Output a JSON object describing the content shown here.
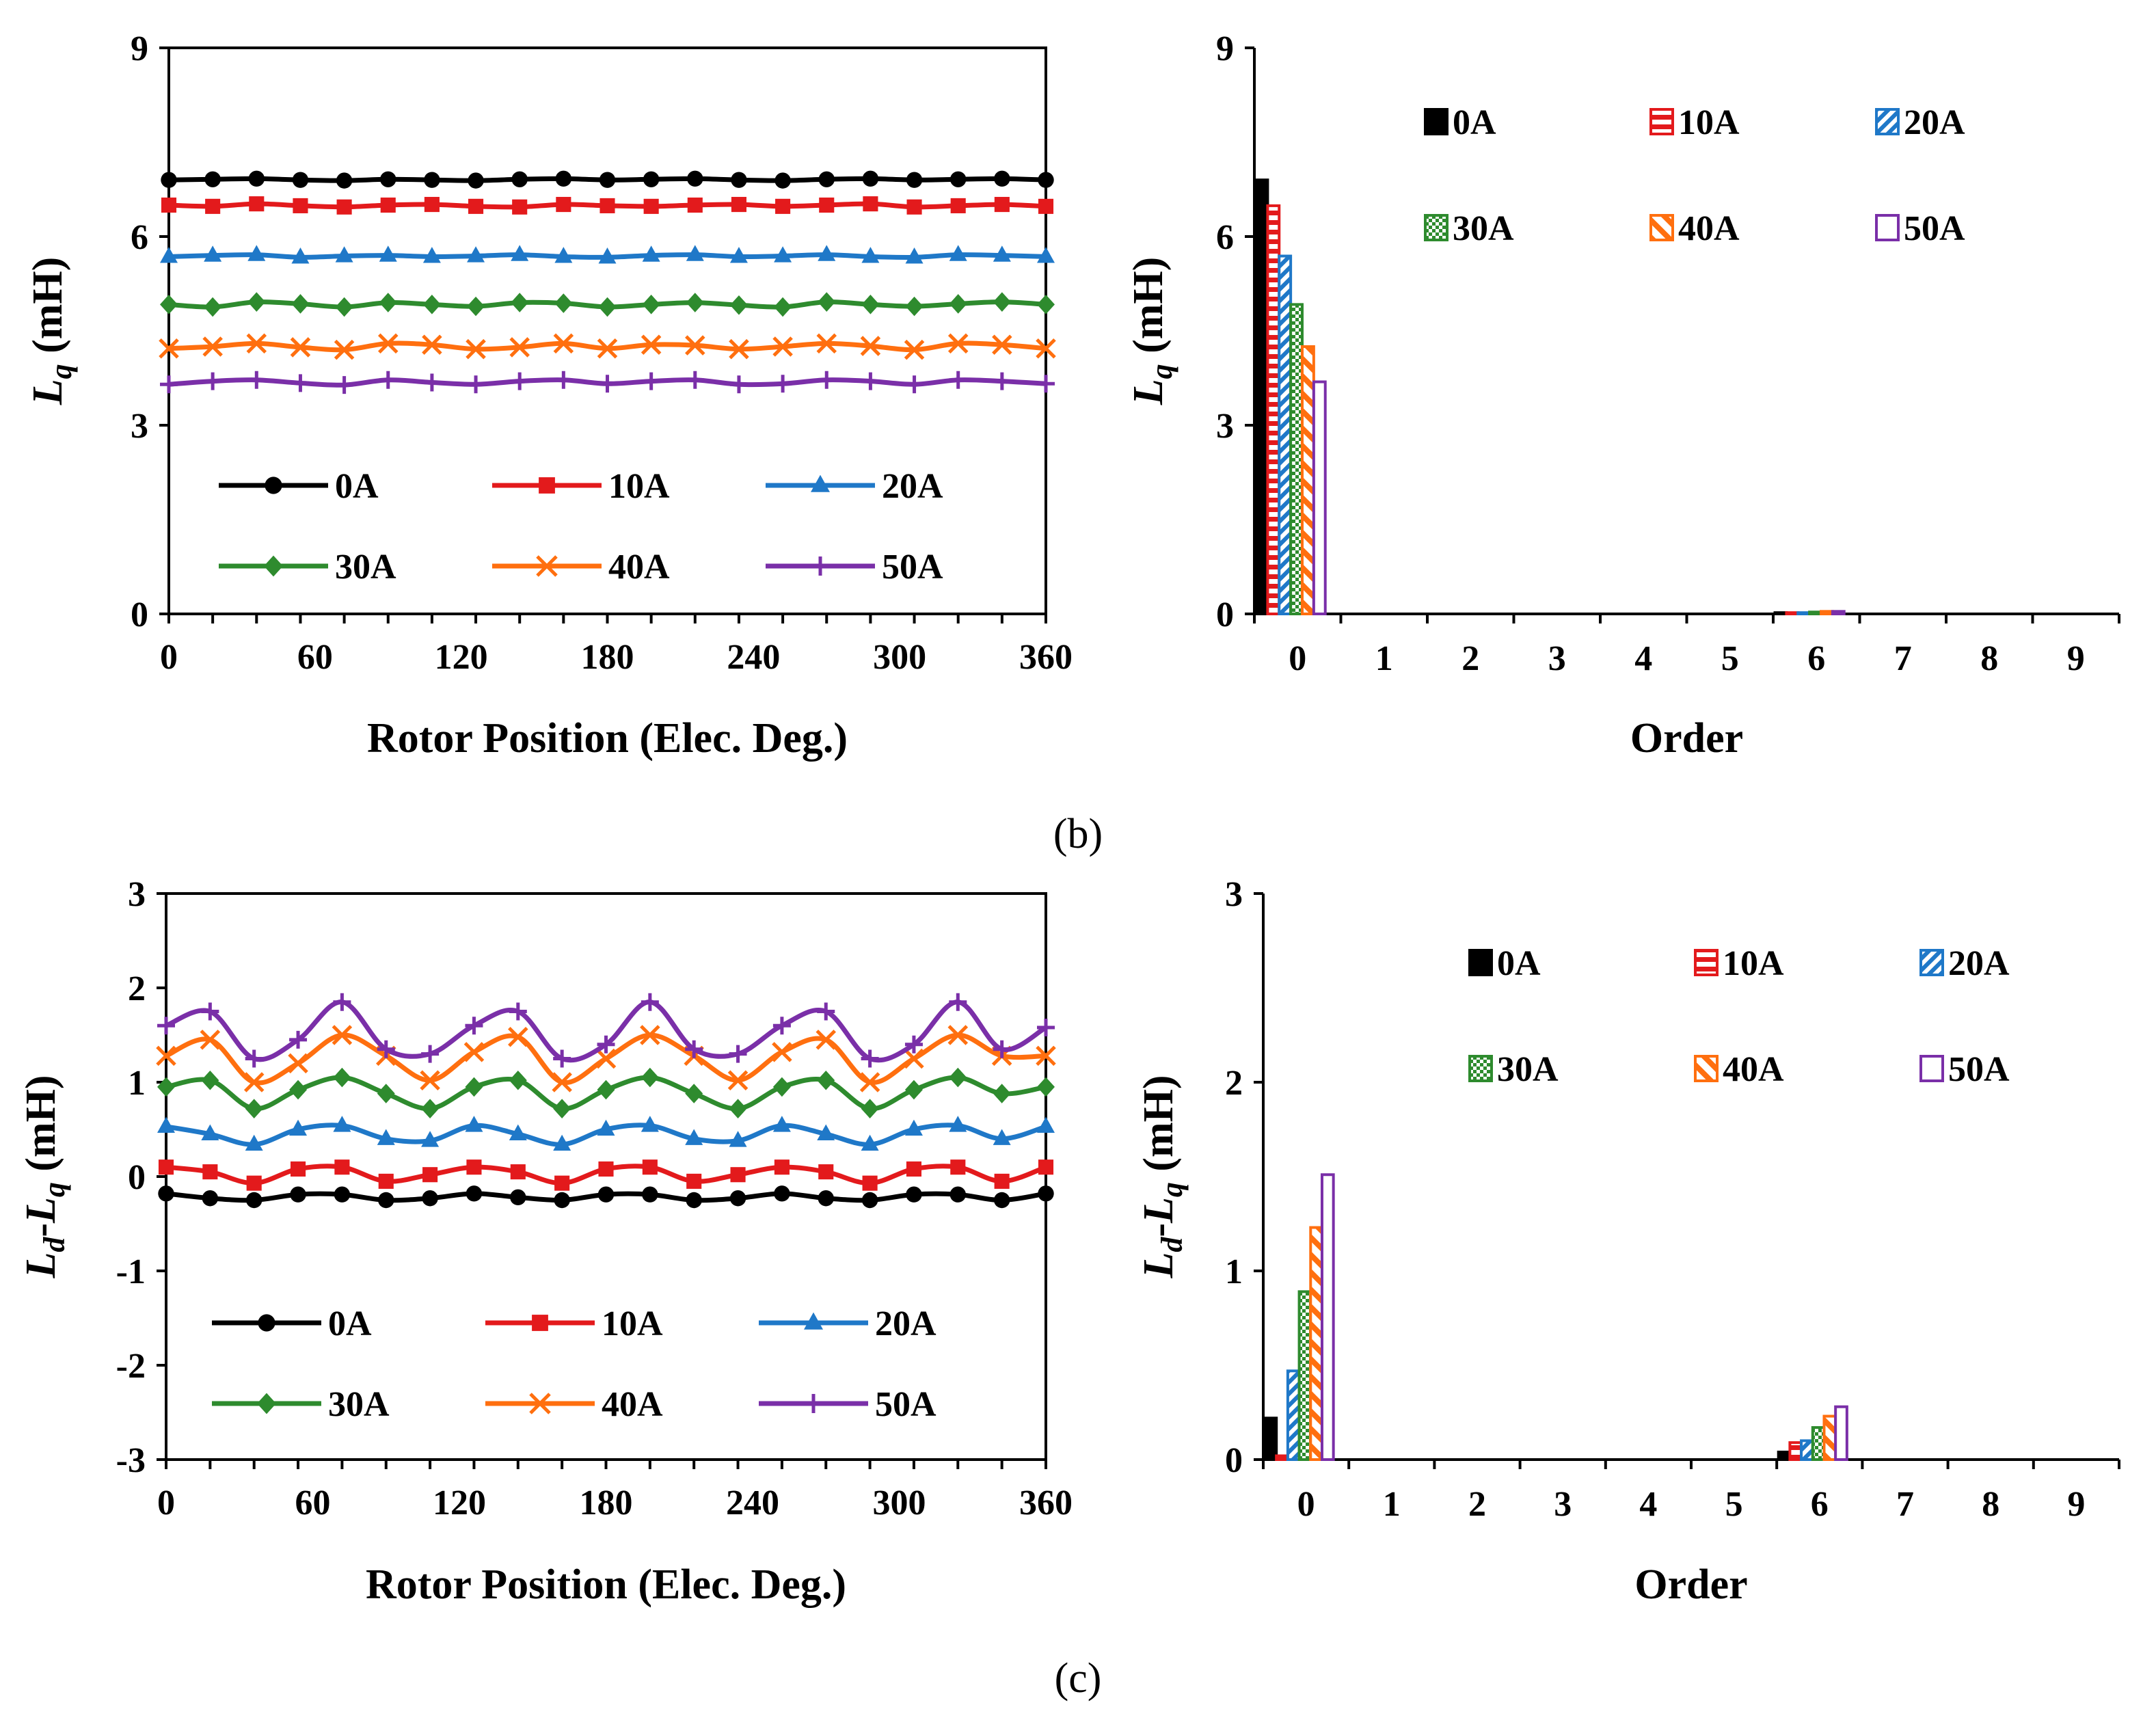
{
  "captions": {
    "b": "(b)",
    "c": "(c)"
  },
  "chart_data": [
    {
      "id": "b-left",
      "type": "line",
      "ylabel": {
        "main": "L",
        "sub": "q",
        "unit": " (mH)"
      },
      "xlabel": "Rotor Position (Elec. Deg.)",
      "xlim": [
        0,
        360
      ],
      "ylim": [
        0,
        9
      ],
      "xticks": [
        "0",
        "60",
        "120",
        "180",
        "240",
        "300",
        "360"
      ],
      "yticks": [
        "0",
        "3",
        "6",
        "9"
      ],
      "legend_cols": 3,
      "x": [
        0,
        18,
        36,
        54,
        72,
        90,
        108,
        126,
        144,
        162,
        180,
        198,
        216,
        234,
        252,
        270,
        288,
        306,
        324,
        342,
        360
      ],
      "series": [
        {
          "name": "0A",
          "color": "#000000",
          "marker": "circle",
          "values": [
            6.9,
            6.91,
            6.92,
            6.9,
            6.89,
            6.91,
            6.9,
            6.89,
            6.91,
            6.92,
            6.9,
            6.91,
            6.92,
            6.9,
            6.89,
            6.91,
            6.92,
            6.9,
            6.91,
            6.92,
            6.9
          ]
        },
        {
          "name": "10A",
          "color": "#e31a1c",
          "marker": "square",
          "values": [
            6.5,
            6.48,
            6.52,
            6.49,
            6.47,
            6.5,
            6.51,
            6.48,
            6.47,
            6.51,
            6.49,
            6.48,
            6.5,
            6.51,
            6.48,
            6.5,
            6.52,
            6.47,
            6.49,
            6.51,
            6.48
          ]
        },
        {
          "name": "20A",
          "color": "#1f78c8",
          "marker": "triangle",
          "values": [
            5.68,
            5.7,
            5.71,
            5.67,
            5.69,
            5.7,
            5.68,
            5.69,
            5.71,
            5.68,
            5.67,
            5.7,
            5.71,
            5.68,
            5.69,
            5.71,
            5.68,
            5.67,
            5.71,
            5.7,
            5.68
          ]
        },
        {
          "name": "30A",
          "color": "#2e8b2e",
          "marker": "diamond",
          "values": [
            4.92,
            4.88,
            4.96,
            4.93,
            4.88,
            4.95,
            4.92,
            4.89,
            4.95,
            4.94,
            4.88,
            4.92,
            4.95,
            4.91,
            4.88,
            4.96,
            4.92,
            4.89,
            4.93,
            4.96,
            4.92
          ]
        },
        {
          "name": "40A",
          "color": "#ff6f0f",
          "marker": "x",
          "values": [
            4.22,
            4.25,
            4.3,
            4.24,
            4.2,
            4.3,
            4.28,
            4.21,
            4.24,
            4.3,
            4.22,
            4.28,
            4.27,
            4.21,
            4.25,
            4.3,
            4.26,
            4.2,
            4.3,
            4.28,
            4.22
          ]
        },
        {
          "name": "50A",
          "color": "#7a2fa8",
          "marker": "plus",
          "values": [
            3.65,
            3.7,
            3.72,
            3.67,
            3.64,
            3.72,
            3.68,
            3.65,
            3.7,
            3.72,
            3.66,
            3.7,
            3.72,
            3.65,
            3.66,
            3.72,
            3.7,
            3.65,
            3.72,
            3.7,
            3.66
          ]
        }
      ]
    },
    {
      "id": "b-right",
      "type": "bar",
      "ylabel": {
        "main": "L",
        "sub": "q",
        "unit": " (mH)"
      },
      "xlabel": "Order",
      "ylim": [
        0,
        9
      ],
      "categories": [
        "0",
        "1",
        "2",
        "3",
        "4",
        "5",
        "6",
        "7",
        "8",
        "9"
      ],
      "yticks": [
        "0",
        "3",
        "6",
        "9"
      ],
      "legend_cols": 3,
      "series": [
        {
          "name": "0A",
          "color": "#000000",
          "pattern": "solid",
          "values": [
            6.9,
            0,
            0,
            0,
            0,
            0,
            0.02,
            0,
            0,
            0
          ]
        },
        {
          "name": "10A",
          "color": "#e31a1c",
          "pattern": "hlines",
          "values": [
            6.49,
            0,
            0,
            0,
            0,
            0,
            0.02,
            0,
            0,
            0
          ]
        },
        {
          "name": "20A",
          "color": "#1f78c8",
          "pattern": "diag",
          "values": [
            5.69,
            0,
            0,
            0,
            0,
            0,
            0.02,
            0,
            0,
            0
          ]
        },
        {
          "name": "30A",
          "color": "#2e8b2e",
          "pattern": "checker",
          "values": [
            4.92,
            0,
            0,
            0,
            0,
            0,
            0.03,
            0,
            0,
            0
          ]
        },
        {
          "name": "40A",
          "color": "#ff6f0f",
          "pattern": "wdiag",
          "values": [
            4.25,
            0,
            0,
            0,
            0,
            0,
            0.04,
            0,
            0,
            0
          ]
        },
        {
          "name": "50A",
          "color": "#7a2fa8",
          "pattern": "hollow",
          "values": [
            3.69,
            0,
            0,
            0,
            0,
            0,
            0.04,
            0,
            0,
            0
          ]
        }
      ]
    },
    {
      "id": "c-left",
      "type": "line",
      "ylabel": {
        "main": "L",
        "sub": "d",
        "mid": "-L",
        "sub2": "q",
        "unit": " (mH)"
      },
      "xlabel": "Rotor Position (Elec. Deg.)",
      "xlim": [
        0,
        360
      ],
      "ylim": [
        -3,
        3
      ],
      "xticks": [
        "0",
        "60",
        "120",
        "180",
        "240",
        "300",
        "360"
      ],
      "yticks": [
        "-3",
        "-2",
        "-1",
        "0",
        "1",
        "2",
        "3"
      ],
      "legend_cols": 3,
      "x": [
        0,
        18,
        36,
        54,
        72,
        90,
        108,
        126,
        144,
        162,
        180,
        198,
        216,
        234,
        252,
        270,
        288,
        306,
        324,
        342,
        360
      ],
      "series": [
        {
          "name": "0A",
          "color": "#000000",
          "marker": "circle",
          "values": [
            -0.18,
            -0.23,
            -0.25,
            -0.19,
            -0.19,
            -0.25,
            -0.23,
            -0.18,
            -0.22,
            -0.25,
            -0.19,
            -0.19,
            -0.25,
            -0.23,
            -0.18,
            -0.23,
            -0.25,
            -0.19,
            -0.19,
            -0.25,
            -0.18
          ]
        },
        {
          "name": "10A",
          "color": "#e31a1c",
          "marker": "square",
          "values": [
            0.1,
            0.05,
            -0.07,
            0.08,
            0.1,
            -0.05,
            0.02,
            0.1,
            0.05,
            -0.07,
            0.08,
            0.1,
            -0.05,
            0.02,
            0.1,
            0.05,
            -0.07,
            0.08,
            0.1,
            -0.05,
            0.1
          ]
        },
        {
          "name": "20A",
          "color": "#1f78c8",
          "marker": "triangle",
          "values": [
            0.53,
            0.45,
            0.34,
            0.5,
            0.54,
            0.4,
            0.38,
            0.54,
            0.45,
            0.34,
            0.5,
            0.54,
            0.4,
            0.38,
            0.54,
            0.45,
            0.34,
            0.5,
            0.54,
            0.4,
            0.53
          ]
        },
        {
          "name": "30A",
          "color": "#2e8b2e",
          "marker": "diamond",
          "values": [
            0.95,
            1.02,
            0.72,
            0.92,
            1.05,
            0.88,
            0.72,
            0.95,
            1.02,
            0.72,
            0.92,
            1.05,
            0.88,
            0.72,
            0.95,
            1.02,
            0.72,
            0.92,
            1.05,
            0.88,
            0.95
          ]
        },
        {
          "name": "40A",
          "color": "#ff6f0f",
          "marker": "x",
          "values": [
            1.28,
            1.45,
            1.0,
            1.2,
            1.5,
            1.28,
            1.02,
            1.32,
            1.48,
            1.0,
            1.25,
            1.5,
            1.28,
            1.02,
            1.32,
            1.45,
            1.0,
            1.25,
            1.5,
            1.28,
            1.28
          ]
        },
        {
          "name": "50A",
          "color": "#7a2fa8",
          "marker": "plus",
          "values": [
            1.6,
            1.75,
            1.25,
            1.45,
            1.85,
            1.35,
            1.3,
            1.6,
            1.75,
            1.25,
            1.4,
            1.85,
            1.35,
            1.3,
            1.6,
            1.75,
            1.25,
            1.4,
            1.85,
            1.35,
            1.58
          ]
        }
      ]
    },
    {
      "id": "c-right",
      "type": "bar",
      "ylabel": {
        "main": "L",
        "sub": "d",
        "mid": "-L",
        "sub2": "q",
        "unit": " (mH)"
      },
      "xlabel": "Order",
      "ylim": [
        0,
        3
      ],
      "categories": [
        "0",
        "1",
        "2",
        "3",
        "4",
        "5",
        "6",
        "7",
        "8",
        "9"
      ],
      "yticks": [
        "0",
        "1",
        "2",
        "3"
      ],
      "legend_cols": 3,
      "series": [
        {
          "name": "0A",
          "color": "#000000",
          "pattern": "solid",
          "values": [
            0.22,
            0,
            0,
            0,
            0,
            0,
            0.04,
            0,
            0,
            0
          ]
        },
        {
          "name": "10A",
          "color": "#e31a1c",
          "pattern": "hlines",
          "values": [
            0.02,
            0,
            0,
            0,
            0,
            0,
            0.09,
            0,
            0,
            0
          ]
        },
        {
          "name": "20A",
          "color": "#1f78c8",
          "pattern": "diag",
          "values": [
            0.47,
            0,
            0,
            0,
            0,
            0,
            0.1,
            0,
            0,
            0
          ]
        },
        {
          "name": "30A",
          "color": "#2e8b2e",
          "pattern": "checker",
          "values": [
            0.89,
            0,
            0,
            0,
            0,
            0,
            0.17,
            0,
            0,
            0
          ]
        },
        {
          "name": "40A",
          "color": "#ff6f0f",
          "pattern": "wdiag",
          "values": [
            1.23,
            0,
            0,
            0,
            0,
            0,
            0.23,
            0,
            0,
            0
          ]
        },
        {
          "name": "50A",
          "color": "#7a2fa8",
          "pattern": "hollow",
          "values": [
            1.51,
            0,
            0,
            0,
            0,
            0,
            0.28,
            0,
            0,
            0
          ]
        }
      ]
    }
  ]
}
